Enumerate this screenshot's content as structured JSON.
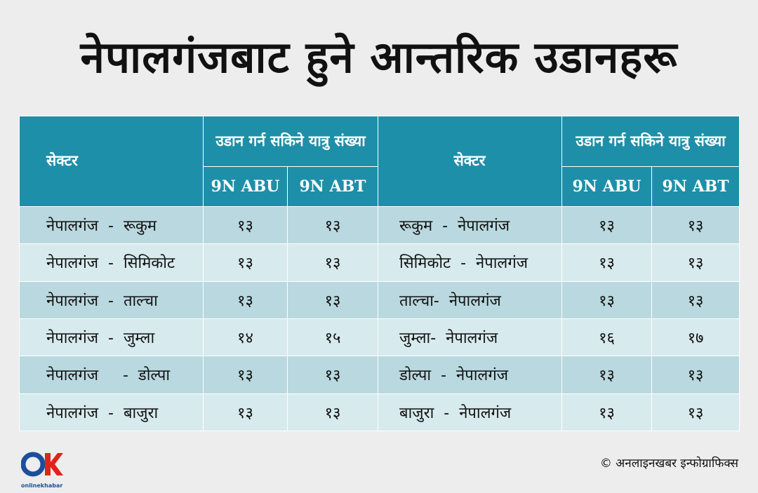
{
  "title": "नेपालगंजबाट हुने आन्तरिक उडानहरू",
  "table": {
    "header": {
      "sector_label": "सेक्टर",
      "capacity_label": "उडान गर्न सकिने यात्रु संख्या",
      "abu": "9N ABU",
      "abt": "9N ABT"
    },
    "rows": [
      {
        "out": "नेपालगंज  -  रूकुम",
        "out_abu": "१३",
        "out_abt": "१३",
        "ret": "रूकुम  -  नेपालगंज",
        "ret_abu": "१३",
        "ret_abt": "१३"
      },
      {
        "out": "नेपालगंज  -  सिमिकोट",
        "out_abu": "१३",
        "out_abt": "१३",
        "ret": "सिमिकोट  -  नेपालगंज",
        "ret_abu": "१३",
        "ret_abt": "१३"
      },
      {
        "out": "नेपालगंज  -  ताल्चा",
        "out_abu": "१३",
        "out_abt": "१३",
        "ret": "ताल्चा-  नेपालगंज",
        "ret_abu": "१३",
        "ret_abt": "१३"
      },
      {
        "out": "नेपालगंज  -  जुम्ला",
        "out_abu": "१४",
        "out_abt": "१५",
        "ret": "जुम्ला-  नेपालगंज",
        "ret_abu": "१६",
        "ret_abt": "१७"
      },
      {
        "out": "नेपालगंज     -  डोल्पा",
        "out_abu": "१३",
        "out_abt": "१३",
        "ret": "डोल्पा  -  नेपालगंज",
        "ret_abu": "१३",
        "ret_abt": "१३"
      },
      {
        "out": "नेपालगंज  -  बाजुरा",
        "out_abu": "१३",
        "out_abt": "१३",
        "ret": "बाजुरा  -  नेपालगंज",
        "ret_abu": "१३",
        "ret_abt": "१३"
      }
    ]
  },
  "footer": {
    "credit": "©  अनलाइनखबर इन्फोग्राफिक्स",
    "logo_text": "onlinekhabar"
  },
  "colors": {
    "header_bg": "#1e8fa8",
    "row_dark": "#b9d8df",
    "row_light": "#d7eaee",
    "logo_blue": "#1b4f9c",
    "logo_red": "#e2231a"
  }
}
